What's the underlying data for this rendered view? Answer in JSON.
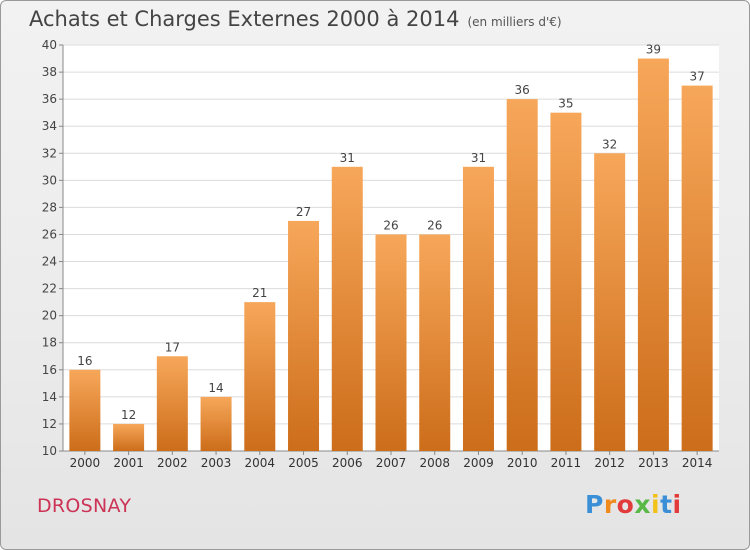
{
  "header": {
    "title": "Achats et Charges Externes 2000 à 2014",
    "subtitle": "(en milliers d'€)"
  },
  "footer": {
    "commune": "DROSNAY",
    "logo_letters": [
      "P",
      "r",
      "o",
      "x",
      "i",
      "t",
      "i"
    ]
  },
  "colors": {
    "bar_light": "#f7a75a",
    "bar_dark": "#cc6d1a",
    "commune": "#cc3355",
    "logo": [
      "#3a8fd6",
      "#f08a1c",
      "#e23b3b",
      "#58b947",
      "#f2c21b",
      "#3a8fd6",
      "#e23b3b"
    ]
  },
  "chart_data": {
    "type": "bar",
    "title": "Achats et Charges Externes 2000 à 2014",
    "subtitle": "(en milliers d'€)",
    "categories": [
      "2000",
      "2001",
      "2002",
      "2003",
      "2004",
      "2005",
      "2006",
      "2007",
      "2008",
      "2009",
      "2010",
      "2011",
      "2012",
      "2013",
      "2014"
    ],
    "values": [
      16,
      12,
      17,
      14,
      21,
      27,
      31,
      26,
      26,
      31,
      36,
      35,
      32,
      39,
      37
    ],
    "data_labels": [
      "16",
      "12",
      "17",
      "14",
      "21",
      "27",
      "31",
      "26",
      "26",
      "31",
      "36",
      "35",
      "32",
      "39",
      "37"
    ],
    "ylim": [
      10,
      40
    ],
    "yticks": [
      10,
      12,
      14,
      16,
      18,
      20,
      22,
      24,
      26,
      28,
      30,
      32,
      34,
      36,
      38,
      40
    ],
    "ytick_labels": [
      "10",
      "12",
      "14",
      "16",
      "18",
      "20",
      "22",
      "24",
      "26",
      "28",
      "30",
      "32",
      "34",
      "36",
      "38",
      "40"
    ],
    "grid": true,
    "xlabel": "",
    "ylabel": ""
  }
}
